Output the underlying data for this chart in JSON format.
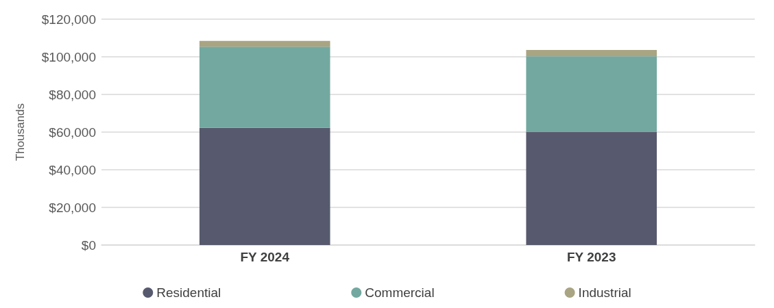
{
  "chart_data": {
    "type": "bar",
    "stacked": true,
    "ylabel": "Thousands",
    "categories": [
      "FY 2024",
      "FY 2023"
    ],
    "series": [
      {
        "name": "Residential",
        "color": "#575a6e",
        "values": [
          62300,
          60200
        ]
      },
      {
        "name": "Commercial",
        "color": "#72a8a0",
        "values": [
          43100,
          40100
        ]
      },
      {
        "name": "Industrial",
        "color": "#a9a482",
        "values": [
          3100,
          3300
        ]
      }
    ],
    "ylim": [
      0,
      120000
    ],
    "yticks": [
      {
        "value": 0,
        "label": "$0"
      },
      {
        "value": 20000,
        "label": "$20,000"
      },
      {
        "value": 40000,
        "label": "$40,000"
      },
      {
        "value": 60000,
        "label": "$60,000"
      },
      {
        "value": 80000,
        "label": "$80,000"
      },
      {
        "value": 100000,
        "label": "$100,000"
      },
      {
        "value": 120000,
        "label": "$120,000"
      }
    ],
    "grid": "y",
    "legend": "bottom"
  }
}
